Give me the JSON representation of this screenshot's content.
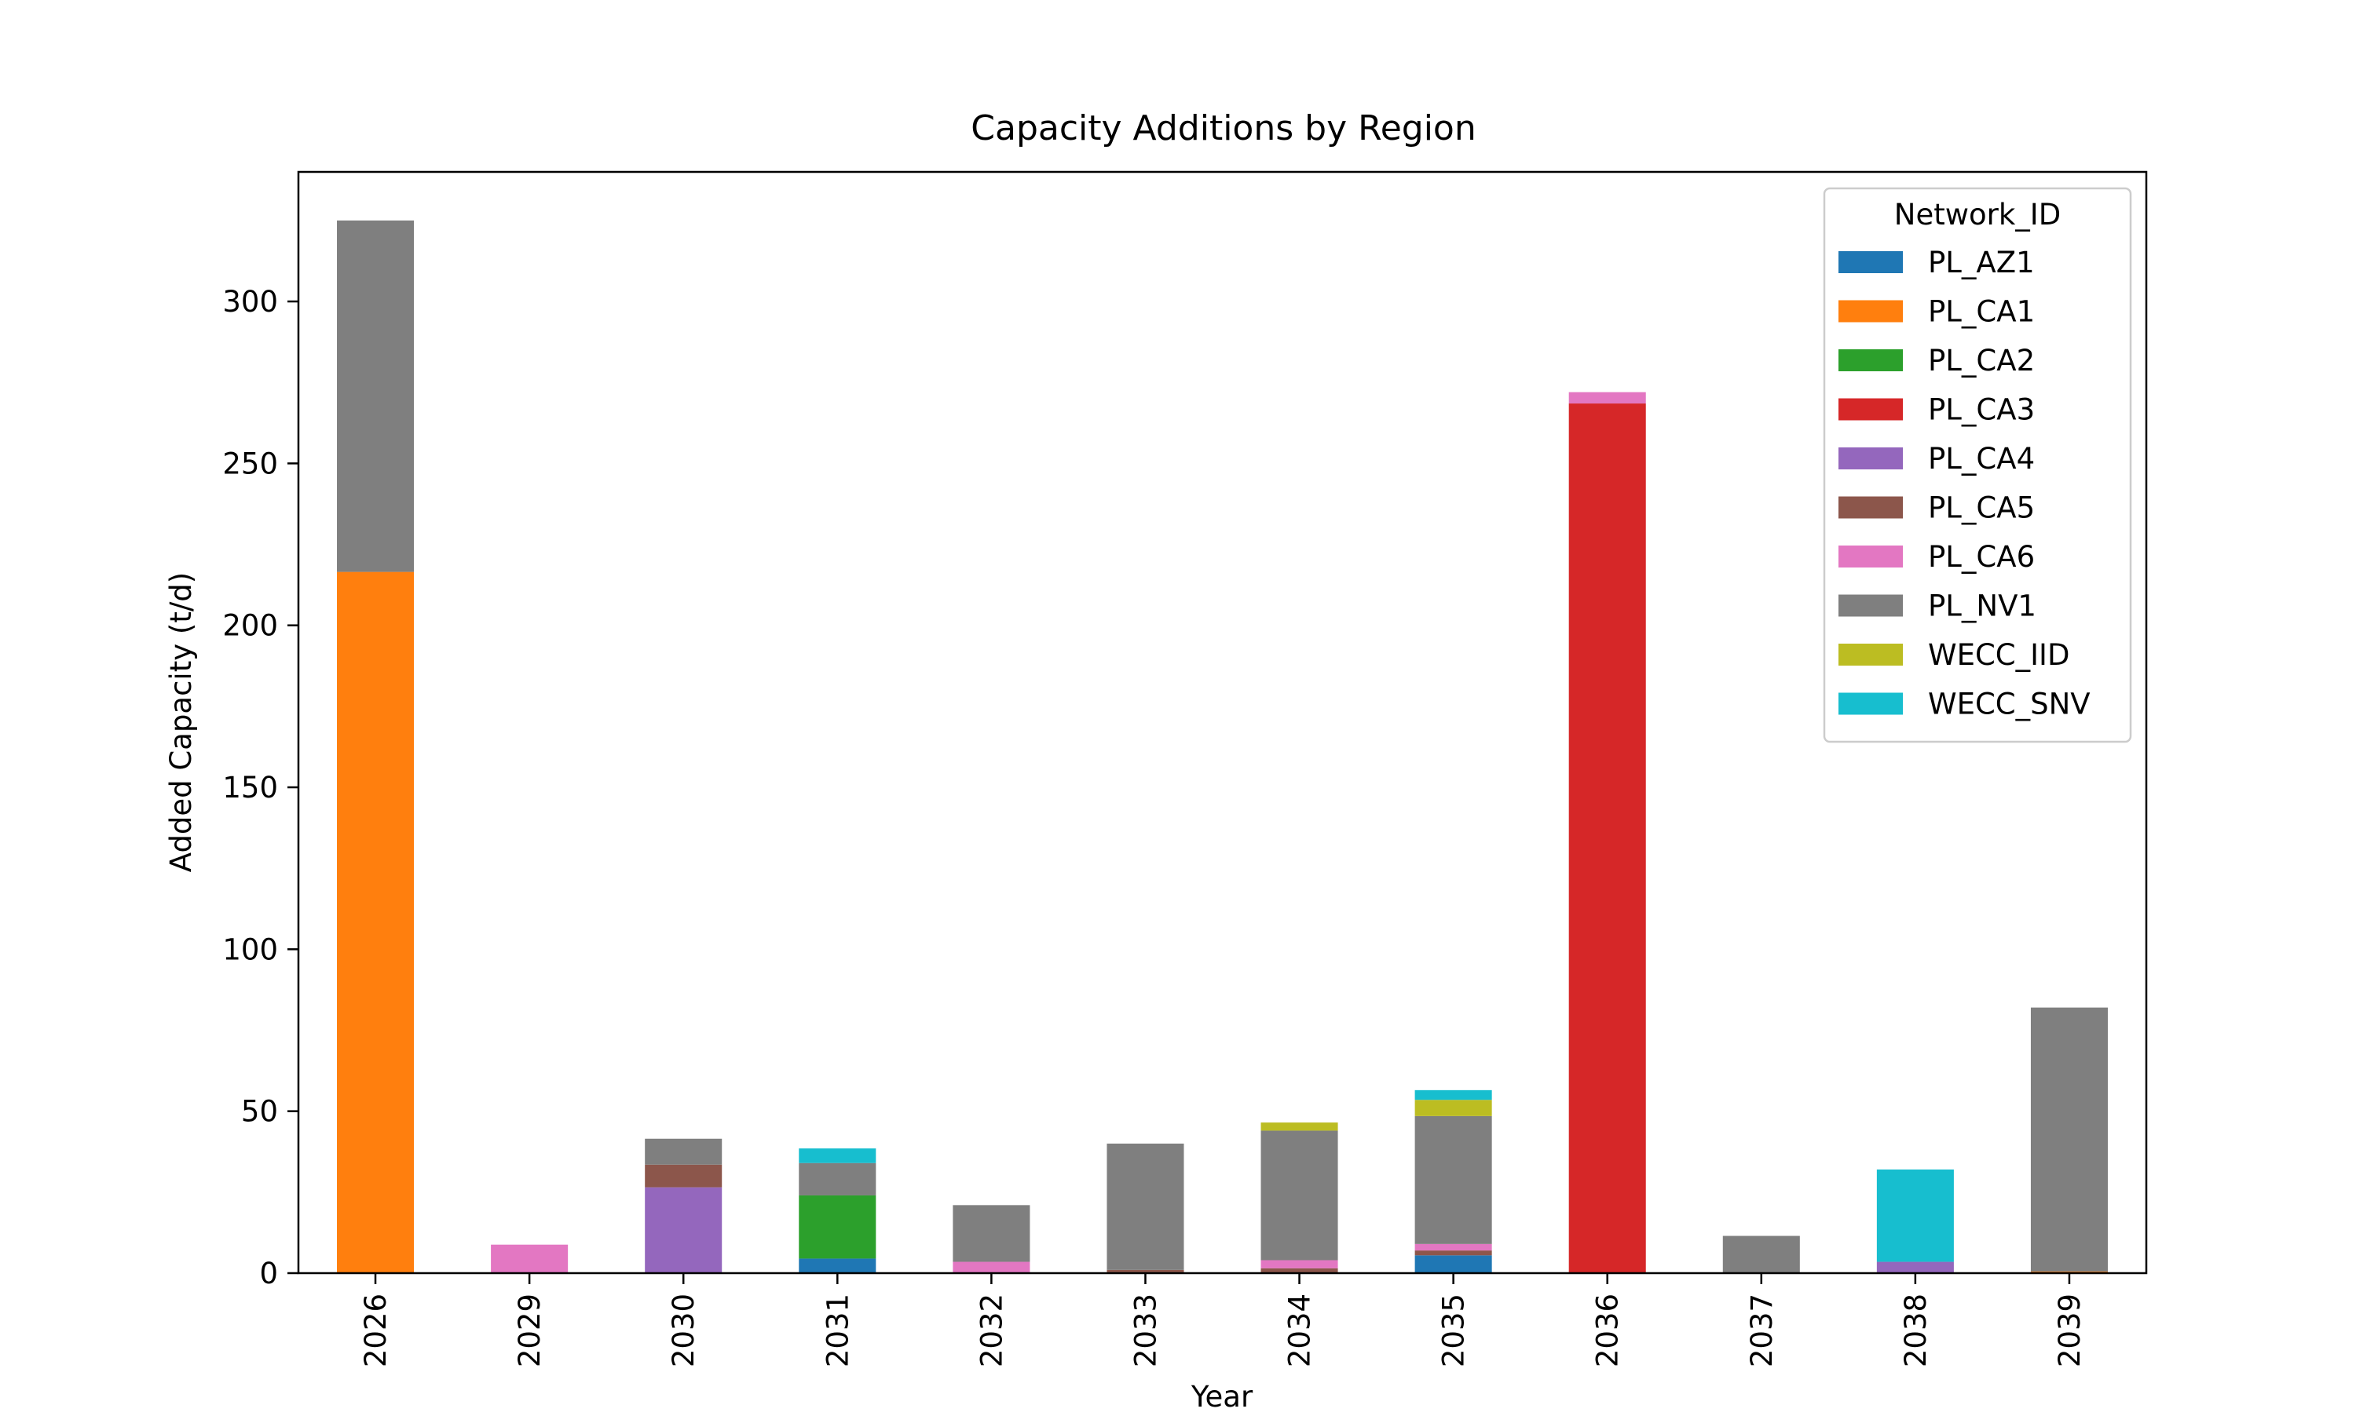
{
  "chart_data": {
    "type": "bar",
    "stacked": true,
    "title": "Capacity Additions by Region",
    "xlabel": "Year",
    "ylabel": "Added Capacity (t/d)",
    "ylim": [
      0,
      340
    ],
    "yticks": [
      0,
      50,
      100,
      150,
      200,
      250,
      300
    ],
    "grid": false,
    "legend": {
      "title": "Network_ID",
      "placement": "top-right"
    },
    "categories": [
      "2026",
      "2029",
      "2030",
      "2031",
      "2032",
      "2033",
      "2034",
      "2035",
      "2036",
      "2037",
      "2038",
      "2039"
    ],
    "series": [
      {
        "name": "PL_AZ1",
        "color": "#1f77b4",
        "values": [
          0,
          0,
          0,
          4.5,
          0,
          0,
          0,
          5.5,
          0,
          0,
          0,
          0
        ]
      },
      {
        "name": "PL_CA1",
        "color": "#ff7f0e",
        "values": [
          216.5,
          0,
          0,
          0,
          0,
          0,
          0,
          0,
          0,
          0,
          0,
          0.5
        ]
      },
      {
        "name": "PL_CA2",
        "color": "#2ca02c",
        "values": [
          0,
          0,
          0,
          19.5,
          0,
          0,
          0,
          0,
          0,
          0,
          0,
          0
        ]
      },
      {
        "name": "PL_CA3",
        "color": "#d62728",
        "values": [
          0,
          0,
          0,
          0,
          0,
          0,
          0,
          0,
          268.5,
          0,
          0,
          0
        ]
      },
      {
        "name": "PL_CA4",
        "color": "#9467bd",
        "values": [
          0,
          0,
          26.5,
          0,
          0,
          0,
          0,
          0,
          0,
          0,
          3.5,
          0
        ]
      },
      {
        "name": "PL_CA5",
        "color": "#8c564b",
        "values": [
          0,
          0,
          7,
          0,
          0,
          1,
          1.5,
          1.5,
          0,
          0,
          0,
          0
        ]
      },
      {
        "name": "PL_CA6",
        "color": "#e377c2",
        "values": [
          0,
          8.8,
          0,
          0,
          3.5,
          0,
          2.5,
          2,
          3.5,
          0,
          0,
          0
        ]
      },
      {
        "name": "PL_NV1",
        "color": "#7f7f7f",
        "values": [
          108.5,
          0,
          8,
          10,
          17.5,
          39,
          40,
          39.5,
          0,
          11.5,
          0,
          81.5
        ]
      },
      {
        "name": "WECC_IID",
        "color": "#bcbd22",
        "values": [
          0,
          0,
          0,
          0,
          0,
          0,
          2.5,
          5,
          0,
          0,
          0,
          0
        ]
      },
      {
        "name": "WECC_SNV",
        "color": "#17becf",
        "values": [
          0,
          0,
          0,
          4.5,
          0,
          0,
          0,
          3,
          0,
          0,
          28.5,
          0
        ]
      }
    ]
  }
}
